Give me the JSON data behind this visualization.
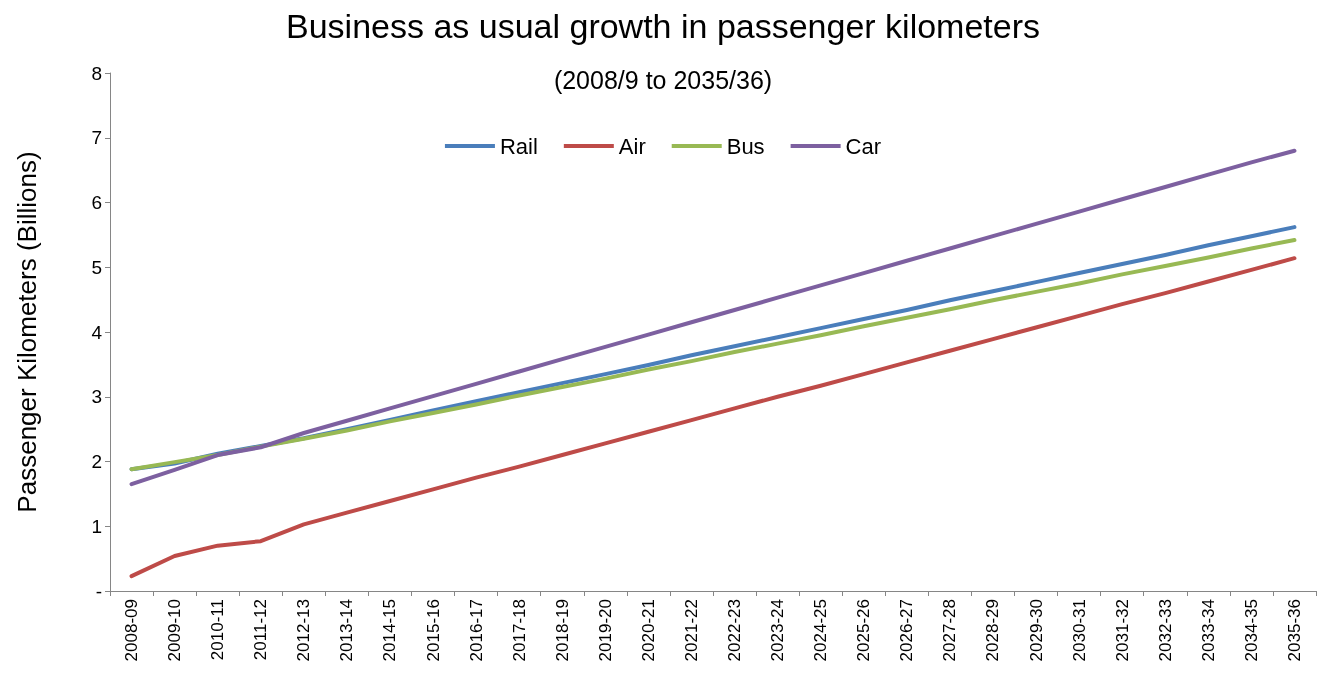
{
  "chart_data": {
    "type": "line",
    "title": "Business as usual growth in passenger kilometers",
    "subtitle": "(2008/9 to 2035/36)",
    "ylabel": "Passenger Kilometers (Billions)",
    "categories": [
      "2008-09",
      "2009-10",
      "2010-11",
      "2011-12",
      "2012-13",
      "2013-14",
      "2014-15",
      "2015-16",
      "2016-17",
      "2017-18",
      "2018-19",
      "2019-20",
      "2020-21",
      "2021-22",
      "2022-23",
      "2023-24",
      "2024-25",
      "2025-26",
      "2026-27",
      "2027-28",
      "2028-29",
      "2029-30",
      "2030-31",
      "2031-32",
      "2032-33",
      "2033-34",
      "2034-35",
      "2035-36"
    ],
    "series": [
      {
        "name": "Rail",
        "color": "#4a7ebb",
        "values": [
          1.88,
          1.97,
          2.12,
          2.24,
          2.36,
          2.5,
          2.64,
          2.79,
          2.93,
          3.07,
          3.21,
          3.35,
          3.49,
          3.64,
          3.78,
          3.92,
          4.06,
          4.2,
          4.34,
          4.49,
          4.63,
          4.77,
          4.91,
          5.05,
          5.19,
          5.34,
          5.48,
          5.62
        ]
      },
      {
        "name": "Air",
        "color": "#be4b48",
        "values": [
          0.23,
          0.54,
          0.7,
          0.77,
          1.03,
          1.21,
          1.39,
          1.57,
          1.75,
          1.92,
          2.1,
          2.28,
          2.46,
          2.64,
          2.82,
          3.0,
          3.17,
          3.35,
          3.53,
          3.71,
          3.89,
          4.07,
          4.25,
          4.43,
          4.6,
          4.78,
          4.96,
          5.14
        ]
      },
      {
        "name": "Bus",
        "color": "#98b954",
        "values": [
          1.88,
          1.99,
          2.1,
          2.23,
          2.35,
          2.48,
          2.62,
          2.75,
          2.88,
          3.02,
          3.15,
          3.28,
          3.42,
          3.55,
          3.69,
          3.82,
          3.95,
          4.09,
          4.22,
          4.35,
          4.49,
          4.62,
          4.75,
          4.89,
          5.02,
          5.15,
          5.29,
          5.42
        ]
      },
      {
        "name": "Car",
        "color": "#7d60a0",
        "values": [
          1.65,
          1.87,
          2.1,
          2.22,
          2.44,
          2.63,
          2.82,
          3.01,
          3.2,
          3.39,
          3.58,
          3.77,
          3.96,
          4.15,
          4.34,
          4.53,
          4.72,
          4.91,
          5.1,
          5.29,
          5.48,
          5.67,
          5.86,
          6.05,
          6.24,
          6.43,
          6.62,
          6.8
        ]
      }
    ],
    "ylim": [
      0,
      8
    ],
    "yticks": [
      {
        "value": 0,
        "label": "-"
      },
      1,
      2,
      3,
      4,
      5,
      6,
      7,
      8
    ],
    "grid": false,
    "legend": "top",
    "marker": "none",
    "line_style": "solid"
  }
}
